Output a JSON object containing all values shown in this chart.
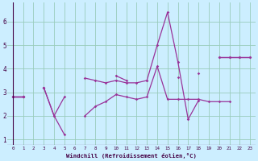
{
  "background_color": "#cceeff",
  "grid_color": "#99ccbb",
  "line_color": "#993399",
  "x_values": [
    0,
    1,
    2,
    3,
    4,
    5,
    6,
    7,
    8,
    9,
    10,
    11,
    12,
    13,
    14,
    15,
    16,
    17,
    18,
    19,
    20,
    21,
    22,
    23
  ],
  "series1": [
    2.8,
    2.8,
    null,
    3.2,
    2.0,
    1.2,
    null,
    2.0,
    2.4,
    2.6,
    2.9,
    2.8,
    2.7,
    2.8,
    4.1,
    2.7,
    2.7,
    2.7,
    2.7,
    2.6,
    2.6,
    2.6,
    null,
    null
  ],
  "series2": [
    2.8,
    2.8,
    null,
    3.2,
    2.0,
    2.8,
    null,
    3.6,
    3.5,
    3.4,
    3.5,
    3.4,
    3.4,
    3.5,
    5.0,
    6.4,
    4.3,
    1.85,
    2.65,
    null,
    null,
    null,
    null,
    null
  ],
  "series3": [
    2.8,
    2.8,
    null,
    3.2,
    null,
    null,
    null,
    null,
    null,
    null,
    3.7,
    3.5,
    null,
    3.5,
    null,
    null,
    3.65,
    null,
    3.8,
    null,
    4.5,
    4.5,
    4.5,
    4.5
  ],
  "series4": [
    2.8,
    2.8,
    null,
    null,
    null,
    null,
    null,
    null,
    null,
    null,
    null,
    null,
    null,
    null,
    null,
    null,
    null,
    null,
    null,
    null,
    4.5,
    4.5,
    4.5,
    4.5
  ],
  "xlabel": "Windchill (Refroidissement éolien,°C)",
  "ylim": [
    0.75,
    6.8
  ],
  "xlim": [
    -0.5,
    23.5
  ],
  "yticks": [
    1,
    2,
    3,
    4,
    5,
    6
  ],
  "xticks": [
    0,
    1,
    2,
    3,
    4,
    5,
    6,
    7,
    8,
    9,
    10,
    11,
    12,
    13,
    14,
    15,
    16,
    17,
    18,
    19,
    20,
    21,
    22,
    23
  ]
}
